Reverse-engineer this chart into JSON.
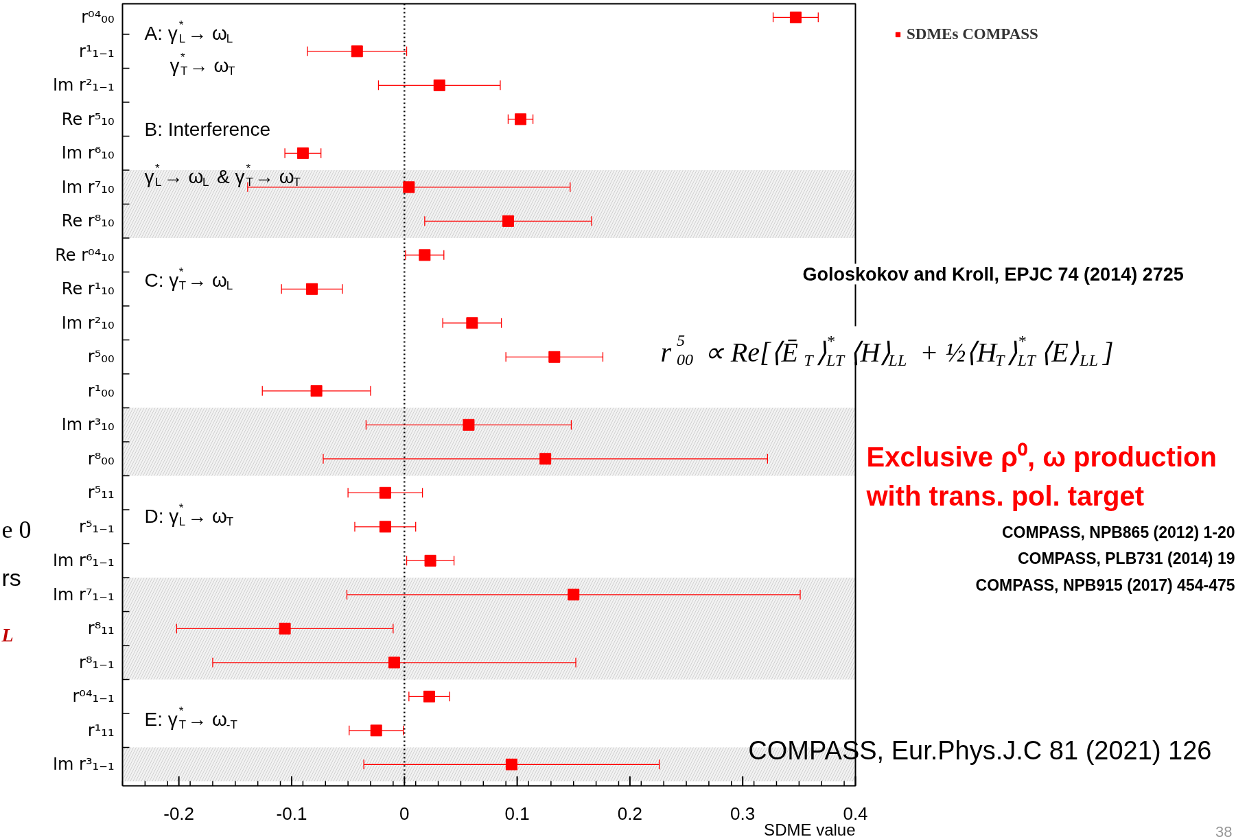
{
  "chart_data": {
    "type": "scatter",
    "orientation": "horizontal",
    "marker": "square",
    "categories": [
      "r⁰⁴₀₀",
      "r¹₁₋₁",
      "Im r²₁₋₁",
      "Re r⁵₁₀",
      "Im r⁶₁₀",
      "Im r⁷₁₀",
      "Re r⁸₁₀",
      "Re r⁰⁴₁₀",
      "Re r¹₁₀",
      "Im r²₁₀",
      "r⁵₀₀",
      "r¹₀₀",
      "Im r³₁₀",
      "r⁸₀₀",
      "r⁵₁₁",
      "r⁵₁₋₁",
      "Im r⁶₁₋₁",
      "Im r⁷₁₋₁",
      "r⁸₁₁",
      "r⁸₁₋₁",
      "r⁰⁴₁₋₁",
      "r¹₁₁",
      "Im r³₁₋₁"
    ],
    "series": [
      {
        "name": "SDMEs COMPASS",
        "color": "#ff0000",
        "values": [
          0.347,
          -0.042,
          0.031,
          0.103,
          -0.09,
          0.004,
          0.092,
          0.018,
          -0.082,
          0.06,
          0.133,
          -0.078,
          0.057,
          0.125,
          -0.017,
          -0.017,
          0.023,
          0.15,
          -0.106,
          -0.009,
          0.022,
          -0.025,
          0.095
        ],
        "errors": [
          0.02,
          0.044,
          0.054,
          0.011,
          0.016,
          0.143,
          0.074,
          0.017,
          0.027,
          0.026,
          0.043,
          0.048,
          0.091,
          0.197,
          0.033,
          0.027,
          0.021,
          0.201,
          0.096,
          0.161,
          0.018,
          0.024,
          0.131
        ]
      }
    ],
    "xlabel": "SDME value",
    "xlim": [
      -0.25,
      0.4
    ],
    "xticks": [
      -0.2,
      -0.1,
      0,
      0.1,
      0.2,
      0.3,
      0.4
    ],
    "legend": "top right",
    "grid": false,
    "ref_lines": [
      {
        "axis": "x",
        "value": 0,
        "line_style": "dotted"
      }
    ],
    "bands": [
      {
        "axis": "y",
        "from": "Im r⁷₁₀",
        "to": "Re r⁸₁₀",
        "color": "#f2f2f2"
      },
      {
        "axis": "y",
        "from": "Im r³₁₀",
        "to": "r⁸₀₀",
        "color": "#f2f2f2"
      },
      {
        "axis": "y",
        "from": "Im r⁷₁₋₁",
        "to": "r⁸₁₋₁",
        "color": "#f2f2f2"
      },
      {
        "axis": "y",
        "from": "Im r³₁₋₁",
        "to": "Im r³₁₋₁",
        "color": "#f2f2f2"
      }
    ],
    "annotations": [
      "A: γ$^{*}$$_{L}$→ ω$_{L}$",
      "γ$^{*}$$_{T}$→ ω$_{T}$",
      "B: Interference",
      "γ$^{*}$$_{L}$→ ω$_{L}$ & γ$^{*}$$_{T}$→ ω$_{T}$",
      "C: γ$^{*}$$_{T}$→ ω$_{L}$",
      "D: γ$^{*}$$_{L}$→ ω$_{T}$",
      "E: γ$^{*}$$_{T}$→ ω$_{-T}$",
      "Goloskokov and Kroll, EPJC 74 (2014) 2725",
      "r$^{5}$$_{00}$ ∝ Re[⟨Ē$_{T}$⟩$^{*}$$_{LT}$⟨H⟩$_{LL}$ + ½⟨H$_{T}$⟩$^{*}$$_{LT}$⟨E⟩$_{LL}$]",
      "Exclusive ρ⁰, ω production",
      "with trans. pol. target",
      "COMPASS, NPB865 (2012) 1-20",
      "COMPASS, PLB731 (2014) 19",
      "COMPASS, NPB915 (2017) 454-475",
      "COMPASS, Eur.Phys.J.C 81 (2021) 126",
      "38",
      "e 0",
      "rs",
      "L"
    ]
  }
}
